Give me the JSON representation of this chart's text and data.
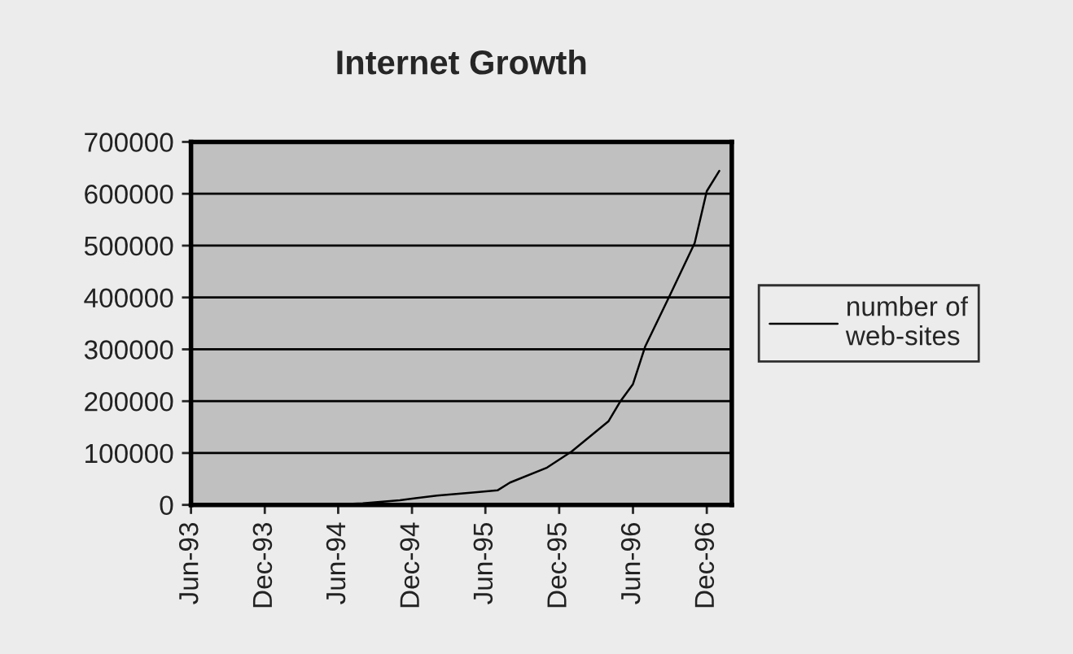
{
  "chart_data": {
    "type": "line",
    "title": "Internet Growth",
    "x": [
      "1993-06",
      "1994-06",
      "1994-08",
      "1994-11",
      "1995-02",
      "1995-05",
      "1995-07",
      "1995-08",
      "1995-11",
      "1996-01",
      "1996-04",
      "1996-05",
      "1996-06",
      "1996-07",
      "1996-09",
      "1996-11",
      "1996-12",
      "1997-01"
    ],
    "series": [
      {
        "name": "number of web-sites",
        "color": "#000000",
        "values": [
          0,
          1000,
          3000,
          9000,
          18000,
          24000,
          28000,
          43000,
          72000,
          103000,
          161000,
          200000,
          233000,
          305000,
          405000,
          505000,
          605000,
          644000
        ]
      }
    ],
    "xlim": [
      "1993-06",
      "1997-02"
    ],
    "xticks": [
      {
        "value": "1993-06",
        "label": "Jun-93"
      },
      {
        "value": "1993-12",
        "label": "Dec-93"
      },
      {
        "value": "1994-06",
        "label": "Jun-94"
      },
      {
        "value": "1994-12",
        "label": "Dec-94"
      },
      {
        "value": "1995-06",
        "label": "Jun-95"
      },
      {
        "value": "1995-12",
        "label": "Dec-95"
      },
      {
        "value": "1996-06",
        "label": "Jun-96"
      },
      {
        "value": "1996-12",
        "label": "Dec-96"
      }
    ],
    "ylim": [
      0,
      700000
    ],
    "yticks": [
      0,
      100000,
      200000,
      300000,
      400000,
      500000,
      600000,
      700000
    ],
    "grid": "y",
    "legend": "right",
    "marker": "none",
    "line_style": "solid"
  }
}
